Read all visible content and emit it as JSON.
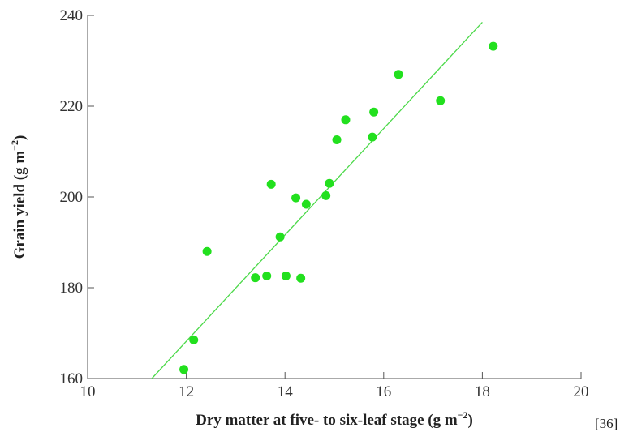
{
  "chart_data": {
    "type": "scatter",
    "title": "",
    "xlabel": {
      "main": "Dry matter at five- to six-leaf stage (g m",
      "sup": "−2",
      "close": ")"
    },
    "ylabel": {
      "main": "Grain yield (g m",
      "sup": "−2",
      "close": ")"
    },
    "xlim": [
      10,
      20
    ],
    "ylim": [
      160,
      240
    ],
    "xticks": [
      10,
      12,
      14,
      16,
      18,
      20
    ],
    "yticks": [
      160,
      180,
      200,
      220,
      240
    ],
    "grid": false,
    "legend": "none",
    "colors": {
      "points": "#22e01e",
      "fit_line": "#4cd94a",
      "axis": "#555555"
    },
    "series": [
      {
        "points": [
          {
            "x": 11.95,
            "y": 162.0
          },
          {
            "x": 12.15,
            "y": 168.5
          },
          {
            "x": 12.42,
            "y": 188.0
          },
          {
            "x": 13.4,
            "y": 182.2
          },
          {
            "x": 13.63,
            "y": 182.6
          },
          {
            "x": 13.72,
            "y": 202.8
          },
          {
            "x": 13.9,
            "y": 191.2
          },
          {
            "x": 14.02,
            "y": 182.6
          },
          {
            "x": 14.22,
            "y": 199.8
          },
          {
            "x": 14.32,
            "y": 182.1
          },
          {
            "x": 14.43,
            "y": 198.4
          },
          {
            "x": 14.83,
            "y": 200.3
          },
          {
            "x": 14.9,
            "y": 203.0
          },
          {
            "x": 15.05,
            "y": 212.6
          },
          {
            "x": 15.23,
            "y": 217.0
          },
          {
            "x": 15.77,
            "y": 213.2
          },
          {
            "x": 15.8,
            "y": 218.7
          },
          {
            "x": 16.3,
            "y": 227.0
          },
          {
            "x": 17.15,
            "y": 221.2
          },
          {
            "x": 18.22,
            "y": 233.2
          }
        ]
      }
    ],
    "fit_line": {
      "x": [
        11.3,
        18.0
      ],
      "y": [
        160.0,
        238.5
      ]
    }
  },
  "reference": "[36]"
}
